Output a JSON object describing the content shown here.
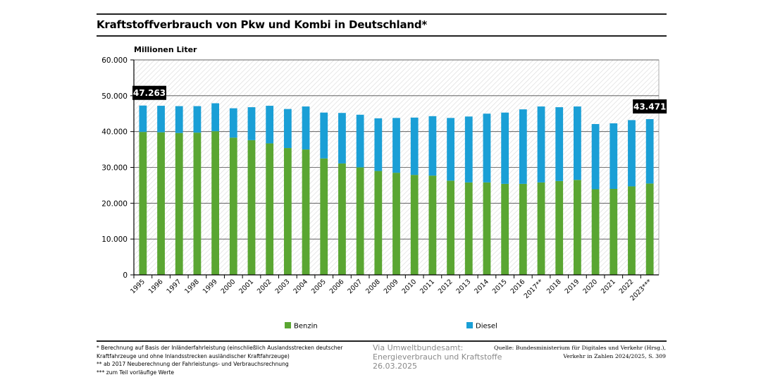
{
  "title": "Kraftstoffverbrauch von Pkw und Kombi in Deutschland*",
  "chart_data": {
    "type": "bar",
    "stacked": true,
    "ylabel": "Millionen Liter",
    "ylim": [
      0,
      60000
    ],
    "yticks": [
      "0",
      "10.000",
      "20.000",
      "30.000",
      "40.000",
      "50.000",
      "60.000"
    ],
    "ytick_values": [
      0,
      10000,
      20000,
      30000,
      40000,
      50000,
      60000
    ],
    "grid": true,
    "legend_position": "bottom",
    "categories": [
      "1995",
      "1996",
      "1997",
      "1998",
      "1999",
      "2000",
      "2001",
      "2002",
      "2003",
      "2004",
      "2005",
      "2006",
      "2007",
      "2008",
      "2009",
      "2010",
      "2011",
      "2012",
      "2013",
      "2014",
      "2015",
      "2016",
      "2017**",
      "2018",
      "2019",
      "2020",
      "2021",
      "2022",
      "2023***"
    ],
    "series": [
      {
        "name": "Benzin",
        "color": "#5aa632",
        "values": [
          39900,
          39800,
          39600,
          39700,
          40100,
          38300,
          37600,
          36700,
          35400,
          35000,
          32500,
          31100,
          30000,
          29000,
          28500,
          27900,
          27700,
          26300,
          25800,
          25800,
          25400,
          25400,
          25800,
          26200,
          26500,
          23900,
          24000,
          24700,
          25500
        ]
      },
      {
        "name": "Diesel",
        "color": "#1a9fd6",
        "values": [
          7363,
          7400,
          7500,
          7400,
          7800,
          8200,
          9200,
          10500,
          10900,
          12000,
          12800,
          14100,
          14700,
          14700,
          15300,
          16000,
          16600,
          17500,
          18400,
          19200,
          19900,
          20800,
          21200,
          20600,
          20500,
          18200,
          18300,
          18500,
          17971
        ]
      }
    ],
    "annotations": [
      {
        "category": "1995",
        "text": "47.263"
      },
      {
        "category": "2023***",
        "text": "43.471"
      }
    ]
  },
  "footnotes": [
    "* Berechnung auf Basis der Inländerfahrleistung (einschließlich Auslandsstrecken deutscher",
    "Kraftfahrzeuge und ohne Inlandsstrecken ausländischer Kraftfahrzeuge)",
    "** ab 2017 Neuberechnung der Fahrleistungs- und Verbrauchsrechnung",
    "*** zum Teil vorläufige Werte"
  ],
  "via": [
    "Via Umweltbundesamt:",
    "Energieverbrauch und Kraftstoffe",
    "26.03.2025"
  ],
  "source": [
    "Quelle: Bundesministerium für Digitales und Verkehr (Hrsg.),",
    "Verkehr in Zahlen 2024/2025, S. 309"
  ]
}
